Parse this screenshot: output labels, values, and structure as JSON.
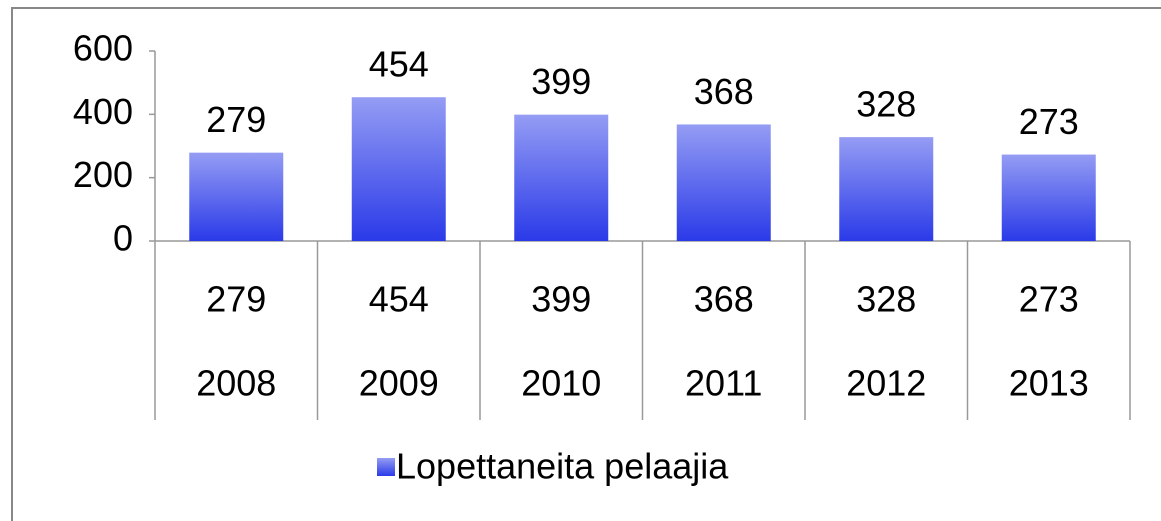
{
  "chart_data": {
    "type": "bar",
    "categories": [
      "2008",
      "2009",
      "2010",
      "2011",
      "2012",
      "2013"
    ],
    "series": [
      {
        "name": "Lopettaneita pelaajia",
        "color": "#2a3ae8",
        "values": [
          279,
          454,
          399,
          368,
          328,
          273
        ]
      }
    ],
    "ylim": [
      0,
      600
    ],
    "yticks": [
      0,
      200,
      400,
      600
    ],
    "legend": "bottom"
  }
}
